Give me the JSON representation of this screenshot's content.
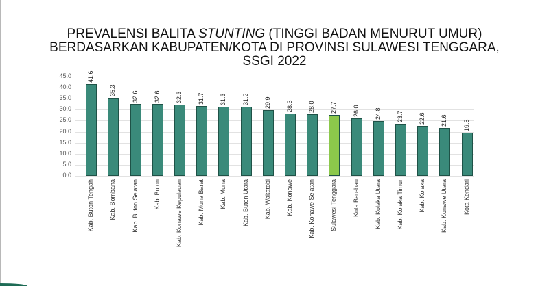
{
  "chart_data": {
    "type": "bar",
    "title": "PREVALENSI BALITA STUNTING (TINGGI BADAN MENURUT UMUR) BERDASARKAN KABUPATEN/KOTA DI PROVINSI SULAWESI TENGGARA, SSGI 2022",
    "title_lines": {
      "line1_pre": "PREVALENSI BALITA ",
      "line1_em": "STUNTING",
      "line1_post": " (TINGGI BADAN MENURUT UMUR)",
      "line2": "BERDASARKAN KABUPATEN/KOTA DI PROVINSI SULAWESI TENGGARA,",
      "line3": "SSGI 2022"
    },
    "xlabel": "",
    "ylabel": "",
    "ylim": [
      0,
      45
    ],
    "yticks": [
      "0.0",
      "5.0",
      "10.0",
      "15.0",
      "20.0",
      "25.0",
      "30.0",
      "35.0",
      "40.0",
      "45.0"
    ],
    "grid": true,
    "legend": null,
    "categories": [
      "Kab. Buton Tengah",
      "Kab. Bombana",
      "Kab. Buton Selatan",
      "Kab. Buton",
      "Kab. Konawe Kepulauan",
      "Kab. Muna Barat",
      "Kab. Muna",
      "Kab. Buton Utara",
      "Kab. Wakatobi",
      "Kab. Konawe",
      "Kab. Konawe Selatan",
      "Sulawesi Tenggara",
      "Kota Bau-bau",
      "Kab. Kolaka Utara",
      "Kab. Kolaka Timur",
      "Kab. Kolaka",
      "Kab. Konawe Utara",
      "Kota Kendari"
    ],
    "values": [
      41.6,
      35.3,
      32.6,
      32.6,
      32.3,
      31.7,
      31.3,
      31.2,
      29.9,
      28.3,
      28.0,
      27.7,
      26.0,
      24.8,
      23.7,
      22.6,
      21.6,
      19.5
    ],
    "value_labels": [
      "41.6",
      "35.3",
      "32.6",
      "32.6",
      "32.3",
      "31.7",
      "31.3",
      "31.2",
      "29.9",
      "28.3",
      "28.0",
      "27.7",
      "26.0",
      "24.8",
      "23.7",
      "22.6",
      "21.6",
      "19.5"
    ],
    "colors": {
      "default_bar": "#3a8a7a",
      "highlight_bar": "#8cc84b",
      "highlight_category": "Sulawesi Tenggara",
      "gridline": "#e2e2e2"
    }
  }
}
